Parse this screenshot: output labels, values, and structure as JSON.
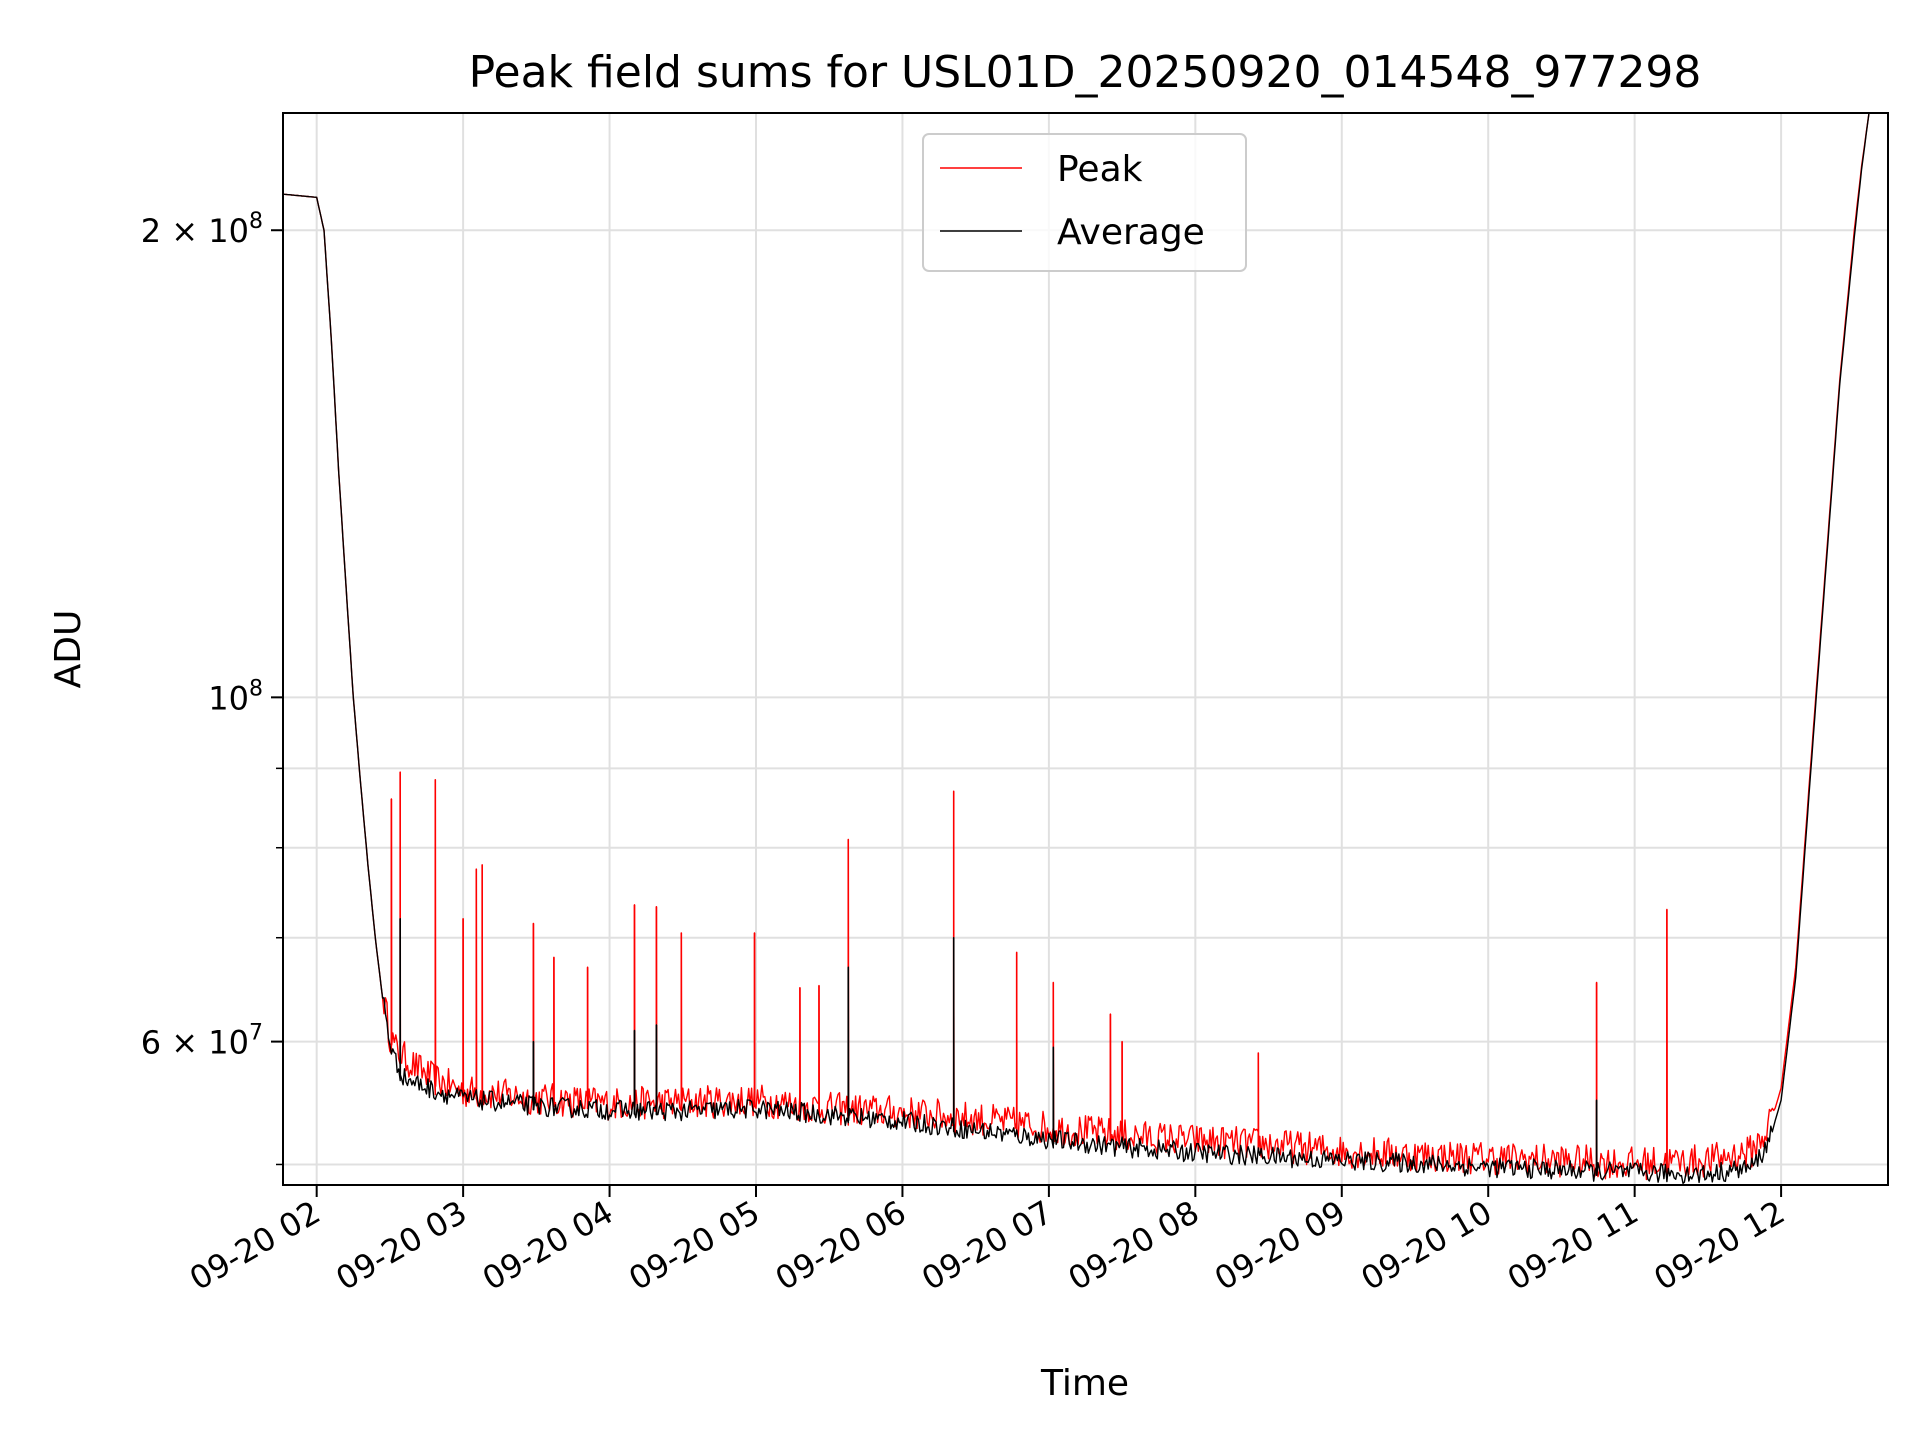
{
  "chart_data": {
    "type": "line",
    "title": "Peak field sums for USL01D_20250920_014548_977298",
    "xlabel": "Time",
    "ylabel": "ADU",
    "yscale": "log",
    "grid": true,
    "legend_position": "top-center",
    "x_unit": "hours since 09-20 00:00",
    "xlim": [
      1.77,
      12.73
    ],
    "ylim": [
      48500000,
      238000000
    ],
    "x_ticks": [
      {
        "value": 2,
        "label": "09-20 02"
      },
      {
        "value": 3,
        "label": "09-20 03"
      },
      {
        "value": 4,
        "label": "09-20 04"
      },
      {
        "value": 5,
        "label": "09-20 05"
      },
      {
        "value": 6,
        "label": "09-20 06"
      },
      {
        "value": 7,
        "label": "09-20 07"
      },
      {
        "value": 8,
        "label": "09-20 08"
      },
      {
        "value": 9,
        "label": "09-20 09"
      },
      {
        "value": 10,
        "label": "09-20 10"
      },
      {
        "value": 11,
        "label": "09-20 11"
      },
      {
        "value": 12,
        "label": "09-20 12"
      }
    ],
    "y_ticks_major": [
      {
        "value": 200000000,
        "base": "2 × 10",
        "exp": "8"
      },
      {
        "value": 100000000,
        "base": "10",
        "exp": "8"
      },
      {
        "value": 60000000,
        "base": "6 × 10",
        "exp": "7"
      }
    ],
    "y_minor_gridlines": [
      50000000,
      70000000,
      80000000,
      90000000
    ],
    "series": [
      {
        "name": "Peak",
        "color": "#ff0000",
        "x": [
          1.77,
          2.0,
          2.05,
          2.1,
          2.15,
          2.2,
          2.25,
          2.3,
          2.35,
          2.4,
          2.45,
          2.5,
          2.55,
          2.6,
          2.7,
          2.8,
          3.0,
          3.2,
          3.5,
          4.0,
          4.5,
          5.0,
          5.5,
          6.0,
          6.5,
          7.0,
          7.5,
          8.0,
          8.5,
          9.0,
          9.5,
          10.0,
          10.5,
          11.0,
          11.5,
          11.8,
          11.9,
          12.0,
          12.1,
          12.2,
          12.3,
          12.4,
          12.5,
          12.55,
          12.6,
          12.65
        ],
        "y": [
          211000000,
          210000000,
          200000000,
          170000000,
          140000000,
          118000000,
          100000000,
          88000000,
          78000000,
          70000000,
          64000000,
          60000000,
          58500000,
          58000000,
          57000000,
          56200000,
          55200000,
          55000000,
          54600000,
          54200000,
          54300000,
          54500000,
          53800000,
          53500000,
          53000000,
          52300000,
          51700000,
          51300000,
          51000000,
          50500000,
          50200000,
          50000000,
          49800000,
          49600000,
          49800000,
          50500000,
          52000000,
          56000000,
          67000000,
          90000000,
          120000000,
          160000000,
          200000000,
          220000000,
          238000000,
          240000000
        ],
        "spikes": [
          {
            "x": 2.51,
            "y": 86000000
          },
          {
            "x": 2.57,
            "y": 89500000
          },
          {
            "x": 2.81,
            "y": 88500000
          },
          {
            "x": 3.0,
            "y": 72000000
          },
          {
            "x": 3.09,
            "y": 77500000
          },
          {
            "x": 3.13,
            "y": 78000000
          },
          {
            "x": 3.48,
            "y": 71500000
          },
          {
            "x": 3.62,
            "y": 68000000
          },
          {
            "x": 3.85,
            "y": 67000000
          },
          {
            "x": 4.17,
            "y": 73500000
          },
          {
            "x": 4.32,
            "y": 73300000
          },
          {
            "x": 4.49,
            "y": 70500000
          },
          {
            "x": 4.99,
            "y": 70500000
          },
          {
            "x": 5.3,
            "y": 65000000
          },
          {
            "x": 5.43,
            "y": 65200000
          },
          {
            "x": 5.63,
            "y": 81000000
          },
          {
            "x": 6.35,
            "y": 87000000
          },
          {
            "x": 6.78,
            "y": 68500000
          },
          {
            "x": 7.03,
            "y": 65500000
          },
          {
            "x": 7.42,
            "y": 62500000
          },
          {
            "x": 7.5,
            "y": 60000000
          },
          {
            "x": 8.43,
            "y": 59000000
          },
          {
            "x": 10.74,
            "y": 65500000
          },
          {
            "x": 11.22,
            "y": 73000000
          }
        ]
      },
      {
        "name": "Average",
        "color": "#000000",
        "x": [
          1.77,
          2.0,
          2.05,
          2.1,
          2.15,
          2.2,
          2.25,
          2.3,
          2.35,
          2.4,
          2.45,
          2.5,
          2.55,
          2.6,
          2.7,
          2.8,
          3.0,
          3.2,
          3.5,
          4.0,
          4.5,
          5.0,
          5.5,
          6.0,
          6.5,
          7.0,
          7.5,
          8.0,
          8.5,
          9.0,
          9.5,
          10.0,
          10.5,
          11.0,
          11.5,
          11.8,
          11.9,
          12.0,
          12.1,
          12.2,
          12.3,
          12.4,
          12.5,
          12.55,
          12.6,
          12.65
        ],
        "y": [
          211000000,
          210000000,
          200000000,
          170000000,
          140000000,
          118000000,
          100000000,
          88000000,
          78000000,
          70000000,
          64000000,
          59500000,
          57500000,
          56500000,
          56000000,
          55500000,
          54800000,
          54600000,
          54200000,
          53900000,
          53800000,
          54000000,
          53500000,
          53000000,
          52300000,
          51600000,
          51000000,
          50600000,
          50300000,
          50000000,
          49800000,
          49500000,
          49300000,
          49100000,
          49000000,
          49500000,
          51000000,
          55000000,
          66000000,
          89000000,
          119000000,
          159000000,
          198000000,
          219000000,
          238000000,
          240000000
        ],
        "spikes": [
          {
            "x": 2.57,
            "y": 72000000
          },
          {
            "x": 3.48,
            "y": 60000000
          },
          {
            "x": 4.17,
            "y": 61000000
          },
          {
            "x": 4.32,
            "y": 61500000
          },
          {
            "x": 5.63,
            "y": 67000000
          },
          {
            "x": 6.35,
            "y": 70000000
          },
          {
            "x": 7.03,
            "y": 59500000
          },
          {
            "x": 10.74,
            "y": 55000000
          }
        ]
      }
    ]
  }
}
